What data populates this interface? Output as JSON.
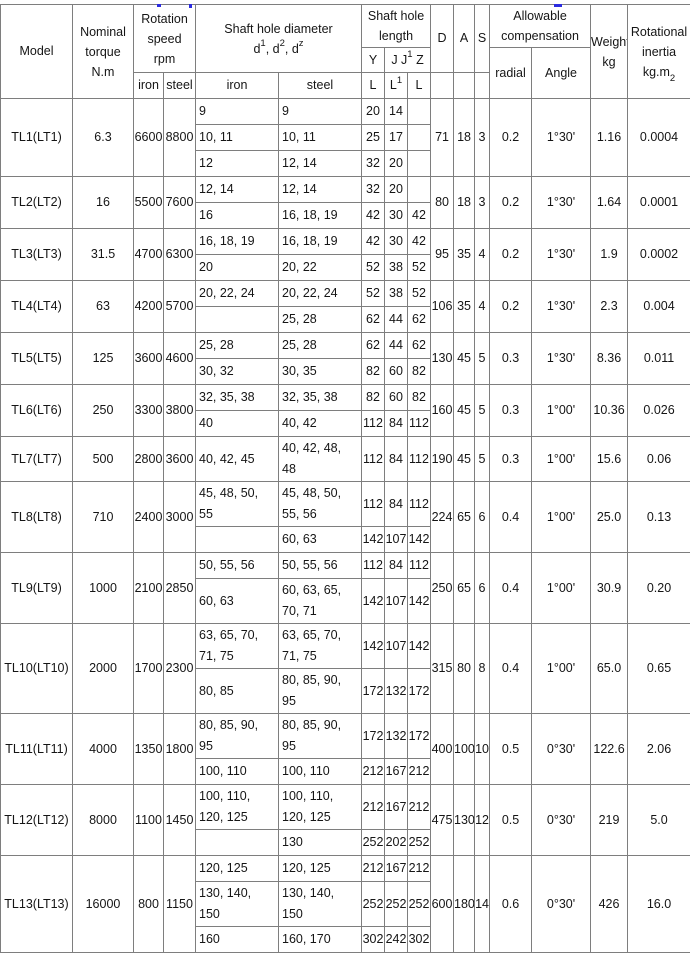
{
  "decor": {
    "clipped_title_color": "#2b2be0"
  },
  "table": {
    "header": {
      "model": "Model",
      "nominal_torque_lines": [
        "Nominal",
        "torque",
        "N.m"
      ],
      "rotation_speed_lines": [
        "Rotation",
        "speed",
        "rpm"
      ],
      "shaft_hole_diameter": "Shaft hole diameter",
      "dia_formula": {
        "b1": "d",
        "s1": "1",
        "b2": ", d",
        "s2": "2",
        "b3": ", d",
        "s3": "z"
      },
      "shaft_hole_length_lines": [
        "Shaft hole",
        "length"
      ],
      "len_y": "Y",
      "len_j": {
        "b1": "J J",
        "s1": "1",
        "b2": " Z"
      },
      "iron": "iron",
      "steel": "steel",
      "L": "L",
      "L1": {
        "b": "L",
        "s": "1"
      },
      "D": "D",
      "A": "A",
      "S": "S",
      "allowable_lines": [
        "Allowable",
        "compensation"
      ],
      "radial": "radial",
      "angle": "Angle",
      "weight_lines": [
        "Weight",
        "kg"
      ],
      "inertia_lines": [
        "Rotational",
        "inertia"
      ],
      "inertia_unit": {
        "b": "kg.m",
        "s": "2"
      }
    },
    "groups": [
      {
        "model": "TL1(LT1)",
        "torque": "6.3",
        "speed_iron": "6600",
        "speed_steel": "8800",
        "subs": [
          {
            "dia_iron": "9",
            "dia_steel": "9",
            "l_y": "20",
            "l_j": "14",
            "l_z": ""
          },
          {
            "dia_iron": "10, 11",
            "dia_steel": "10, 11",
            "l_y": "25",
            "l_j": "17",
            "l_z": ""
          },
          {
            "dia_iron": "12",
            "dia_steel": "12, 14",
            "l_y": "32",
            "l_j": "20",
            "l_z": ""
          }
        ],
        "d": "71",
        "a": "18",
        "s": "3",
        "radial": "0.2",
        "angle": "1°30'",
        "weight": "1.16",
        "inertia": "0.0004"
      },
      {
        "model": "TL2(LT2)",
        "torque": "16",
        "speed_iron": "5500",
        "speed_steel": "7600",
        "subs": [
          {
            "dia_iron": "12, 14",
            "dia_steel": "12, 14",
            "l_y": "32",
            "l_j": "20",
            "l_z": ""
          },
          {
            "dia_iron": "16",
            "dia_steel": "16, 18, 19",
            "l_y": "42",
            "l_j": "30",
            "l_z": "42"
          }
        ],
        "d": "80",
        "a": "18",
        "s": "3",
        "radial": "0.2",
        "angle": "1°30'",
        "weight": "1.64",
        "inertia": "0.0001"
      },
      {
        "model": "TL3(LT3)",
        "torque": "31.5",
        "speed_iron": "4700",
        "speed_steel": "6300",
        "subs": [
          {
            "dia_iron": "16, 18, 19",
            "dia_steel": "16, 18, 19",
            "l_y": "42",
            "l_j": "30",
            "l_z": "42"
          },
          {
            "dia_iron": "20",
            "dia_steel": "20, 22",
            "l_y": "52",
            "l_j": "38",
            "l_z": "52"
          }
        ],
        "d": "95",
        "a": "35",
        "s": "4",
        "radial": "0.2",
        "angle": "1°30'",
        "weight": "1.9",
        "inertia": "0.0002"
      },
      {
        "model": "TL4(LT4)",
        "torque": "63",
        "speed_iron": "4200",
        "speed_steel": "5700",
        "subs": [
          {
            "dia_iron": "20, 22, 24",
            "dia_steel": "20, 22, 24",
            "l_y": "52",
            "l_j": "38",
            "l_z": "52"
          },
          {
            "dia_iron": "",
            "dia_steel": "25, 28",
            "l_y": "62",
            "l_j": "44",
            "l_z": "62"
          }
        ],
        "d": "106",
        "a": "35",
        "s": "4",
        "radial": "0.2",
        "angle": "1°30'",
        "weight": "2.3",
        "inertia": "0.004"
      },
      {
        "model": "TL5(LT5)",
        "torque": "125",
        "speed_iron": "3600",
        "speed_steel": "4600",
        "subs": [
          {
            "dia_iron": "25, 28",
            "dia_steel": "25, 28",
            "l_y": "62",
            "l_j": "44",
            "l_z": "62"
          },
          {
            "dia_iron": "30, 32",
            "dia_steel": "30, 35",
            "l_y": "82",
            "l_j": "60",
            "l_z": "82"
          }
        ],
        "d": "130",
        "a": "45",
        "s": "5",
        "radial": "0.3",
        "angle": "1°30'",
        "weight": "8.36",
        "inertia": "0.011"
      },
      {
        "model": "TL6(LT6)",
        "torque": "250",
        "speed_iron": "3300",
        "speed_steel": "3800",
        "subs": [
          {
            "dia_iron": "32, 35, 38",
            "dia_steel": "32, 35, 38",
            "l_y": "82",
            "l_j": "60",
            "l_z": "82"
          },
          {
            "dia_iron": "40",
            "dia_steel": "40, 42",
            "l_y": "112",
            "l_j": "84",
            "l_z": "112"
          }
        ],
        "d": "160",
        "a": "45",
        "s": "5",
        "radial": "0.3",
        "angle": "1°00'",
        "weight": "10.36",
        "inertia": "0.026"
      },
      {
        "model": "TL7(LT7)",
        "torque": "500",
        "speed_iron": "2800",
        "speed_steel": "3600",
        "subs": [
          {
            "dia_iron": "40, 42, 45",
            "dia_steel": "40, 42, 48,\n48",
            "l_y": "112",
            "l_j": "84",
            "l_z": "112"
          }
        ],
        "d": "190",
        "a": "45",
        "s": "5",
        "radial": "0.3",
        "angle": "1°00'",
        "weight": "15.6",
        "inertia": "0.06"
      },
      {
        "model": "TL8(LT8)",
        "torque": "710",
        "speed_iron": "2400",
        "speed_steel": "3000",
        "subs": [
          {
            "dia_iron": "45, 48, 50,\n55",
            "dia_steel": "45, 48, 50,\n55, 56",
            "l_y": "112",
            "l_j": "84",
            "l_z": "112"
          },
          {
            "dia_iron": "",
            "dia_steel": "60, 63",
            "l_y": "142",
            "l_j": "107",
            "l_z": "142"
          }
        ],
        "d": "224",
        "a": "65",
        "s": "6",
        "radial": "0.4",
        "angle": "1°00'",
        "weight": "25.0",
        "inertia": "0.13"
      },
      {
        "model": "TL9(LT9)",
        "torque": "1000",
        "speed_iron": "2100",
        "speed_steel": "2850",
        "subs": [
          {
            "dia_iron": "50, 55, 56",
            "dia_steel": "50, 55, 56",
            "l_y": "112",
            "l_j": "84",
            "l_z": "112"
          },
          {
            "dia_iron": "60, 63",
            "dia_steel": "60, 63, 65,\n70, 71",
            "l_y": "142",
            "l_j": "107",
            "l_z": "142"
          }
        ],
        "d": "250",
        "a": "65",
        "s": "6",
        "radial": "0.4",
        "angle": "1°00'",
        "weight": "30.9",
        "inertia": "0.20"
      },
      {
        "model": "TL10(LT10)",
        "torque": "2000",
        "speed_iron": "1700",
        "speed_steel": "2300",
        "subs": [
          {
            "dia_iron": "63, 65, 70,\n71, 75",
            "dia_steel": "63, 65, 70,\n71, 75",
            "l_y": "142",
            "l_j": "107",
            "l_z": "142"
          },
          {
            "dia_iron": "80, 85",
            "dia_steel": "80, 85, 90,\n95",
            "l_y": "172",
            "l_j": "132",
            "l_z": "172"
          }
        ],
        "d": "315",
        "a": "80",
        "s": "8",
        "radial": "0.4",
        "angle": "1°00'",
        "weight": "65.0",
        "inertia": "0.65"
      },
      {
        "model": "TL11(LT11)",
        "torque": "4000",
        "speed_iron": "1350",
        "speed_steel": "1800",
        "subs": [
          {
            "dia_iron": "80, 85, 90,\n95",
            "dia_steel": "80, 85, 90,\n95",
            "l_y": "172",
            "l_j": "132",
            "l_z": "172"
          },
          {
            "dia_iron": "100, 110",
            "dia_steel": "100, 110",
            "l_y": "212",
            "l_j": "167",
            "l_z": "212"
          }
        ],
        "d": "400",
        "a": "100",
        "s": "10",
        "radial": "0.5",
        "angle": "0°30'",
        "weight": "122.6",
        "inertia": "2.06"
      },
      {
        "model": "TL12(LT12)",
        "torque": "8000",
        "speed_iron": "1100",
        "speed_steel": "1450",
        "subs": [
          {
            "dia_iron": "100, 110,\n120, 125",
            "dia_steel": "100, 110,\n120, 125",
            "l_y": "212",
            "l_j": "167",
            "l_z": "212"
          },
          {
            "dia_iron": "",
            "dia_steel": "130",
            "l_y": "252",
            "l_j": "202",
            "l_z": "252"
          }
        ],
        "d": "475",
        "a": "130",
        "s": "12",
        "radial": "0.5",
        "angle": "0°30'",
        "weight": "219",
        "inertia": "5.0"
      },
      {
        "model": "TL13(LT13)",
        "torque": "16000",
        "speed_iron": "800",
        "speed_steel": "1150",
        "subs": [
          {
            "dia_iron": "120, 125",
            "dia_steel": "120, 125",
            "l_y": "212",
            "l_j": "167",
            "l_z": "212"
          },
          {
            "dia_iron": "130, 140,\n150",
            "dia_steel": "130, 140,\n150",
            "l_y": "252",
            "l_j": "252",
            "l_z": "252"
          },
          {
            "dia_iron": "160",
            "dia_steel": "160, 170",
            "l_y": "302",
            "l_j": "242",
            "l_z": "302"
          }
        ],
        "d": "600",
        "a": "180",
        "s": "14",
        "radial": "0.6",
        "angle": "0°30'",
        "weight": "426",
        "inertia": "16.0"
      }
    ]
  }
}
